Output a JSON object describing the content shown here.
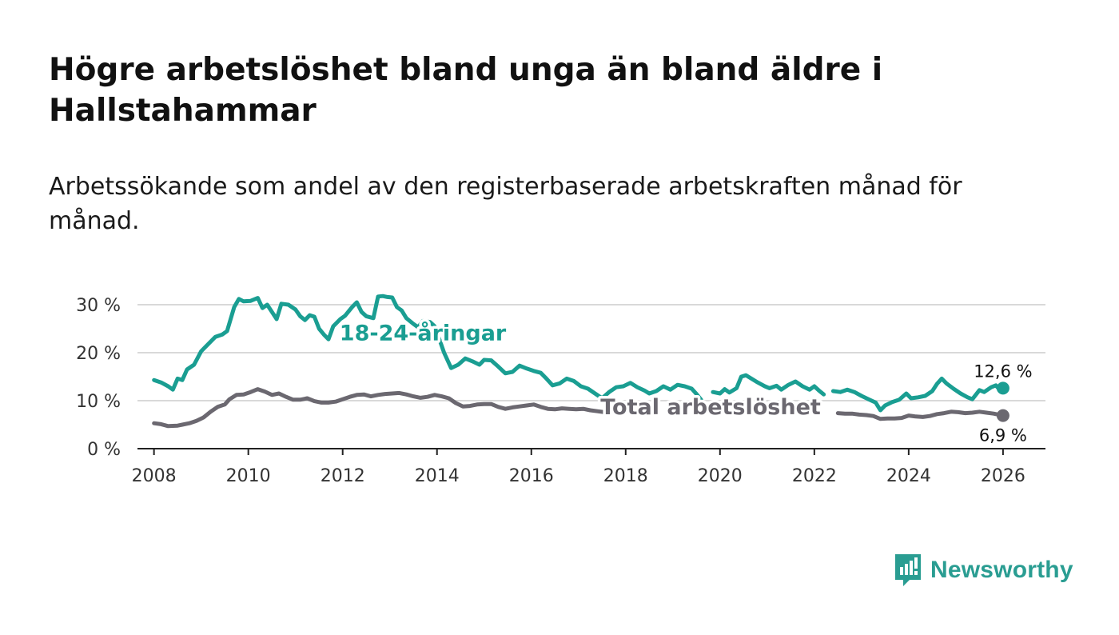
{
  "header": {
    "title": "Högre arbetslöshet bland unga än bland äldre i Hallstahammar",
    "subtitle": "Arbetssökande som andel av den registerbaserade arbetskraften månad för månad."
  },
  "brand": {
    "name": "Newsworthy",
    "color": "#2a9d92"
  },
  "colors": {
    "youth": "#1a9e92",
    "total": "#6b6870",
    "grid": "#d9d9d9",
    "axis": "#222222",
    "text": "#333333"
  },
  "chart_data": {
    "type": "line",
    "title": "Högre arbetslöshet bland unga än bland äldre i Hallstahammar",
    "xlabel": "",
    "ylabel": "",
    "xlim": [
      2007.65,
      2026.9
    ],
    "ylim": [
      0,
      30
    ],
    "y_ticks": [
      0,
      10,
      20,
      30
    ],
    "y_tick_labels": [
      "0 %",
      "10 %",
      "20 %",
      "30 %"
    ],
    "x_ticks": [
      2008,
      2010,
      2012,
      2014,
      2016,
      2018,
      2020,
      2022,
      2024,
      2026
    ],
    "x_tick_labels": [
      "2008",
      "2010",
      "2012",
      "2014",
      "2016",
      "2018",
      "2020",
      "2022",
      "2024",
      "2026"
    ],
    "grid": true,
    "series": [
      {
        "name": "18-24-åringar",
        "label": "18-24-åringar",
        "color": "#1a9e92",
        "last_value": 12.6,
        "end_label": "12,6 %",
        "points": [
          [
            2008.0,
            14.3
          ],
          [
            2008.15,
            13.8
          ],
          [
            2008.3,
            13.0
          ],
          [
            2008.4,
            12.3
          ],
          [
            2008.5,
            14.6
          ],
          [
            2008.6,
            14.3
          ],
          [
            2008.7,
            16.5
          ],
          [
            2008.85,
            17.5
          ],
          [
            2009.0,
            20.3
          ],
          [
            2009.15,
            21.8
          ],
          [
            2009.3,
            23.3
          ],
          [
            2009.45,
            23.8
          ],
          [
            2009.55,
            24.5
          ],
          [
            2009.7,
            29.5
          ],
          [
            2009.8,
            31.2
          ],
          [
            2009.9,
            30.7
          ],
          [
            2010.05,
            30.8
          ],
          [
            2010.2,
            31.4
          ],
          [
            2010.3,
            29.3
          ],
          [
            2010.4,
            30.0
          ],
          [
            2010.5,
            28.5
          ],
          [
            2010.6,
            27.0
          ],
          [
            2010.7,
            30.2
          ],
          [
            2010.85,
            30.0
          ],
          [
            2011.0,
            29.0
          ],
          [
            2011.1,
            27.6
          ],
          [
            2011.2,
            26.8
          ],
          [
            2011.3,
            27.8
          ],
          [
            2011.4,
            27.5
          ],
          [
            2011.5,
            25.0
          ],
          [
            2011.6,
            23.8
          ],
          [
            2011.7,
            22.8
          ],
          [
            2011.8,
            25.5
          ],
          [
            2011.95,
            27.0
          ],
          [
            2012.05,
            27.7
          ],
          [
            2012.2,
            29.5
          ],
          [
            2012.3,
            30.5
          ],
          [
            2012.4,
            28.5
          ],
          [
            2012.5,
            27.6
          ],
          [
            2012.65,
            27.2
          ],
          [
            2012.75,
            31.7
          ],
          [
            2012.85,
            31.8
          ],
          [
            2012.95,
            31.6
          ],
          [
            2013.05,
            31.5
          ],
          [
            2013.15,
            29.5
          ],
          [
            2013.25,
            28.8
          ],
          [
            2013.35,
            27.2
          ],
          [
            2013.5,
            26.0
          ],
          [
            2013.6,
            25.3
          ],
          [
            2013.7,
            26.6
          ],
          [
            2013.85,
            26.4
          ],
          [
            2013.95,
            25.5
          ],
          [
            2014.05,
            22.8
          ],
          [
            2014.15,
            20.0
          ],
          [
            2014.3,
            16.8
          ],
          [
            2014.45,
            17.5
          ],
          [
            2014.6,
            18.8
          ],
          [
            2014.75,
            18.2
          ],
          [
            2014.9,
            17.5
          ],
          [
            2015.0,
            18.5
          ],
          [
            2015.15,
            18.4
          ],
          [
            2015.3,
            17.1
          ],
          [
            2015.45,
            15.7
          ],
          [
            2015.6,
            16.0
          ],
          [
            2015.75,
            17.3
          ],
          [
            2015.9,
            16.7
          ],
          [
            2016.05,
            16.2
          ],
          [
            2016.2,
            15.8
          ],
          [
            2016.3,
            14.8
          ],
          [
            2016.45,
            13.2
          ],
          [
            2016.6,
            13.6
          ],
          [
            2016.75,
            14.6
          ],
          [
            2016.9,
            14.1
          ],
          [
            2017.05,
            13.0
          ],
          [
            2017.2,
            12.5
          ],
          [
            2017.35,
            11.5
          ],
          [
            2017.5,
            10.5
          ],
          [
            2017.65,
            11.8
          ],
          [
            2017.8,
            12.8
          ],
          [
            2017.95,
            13.0
          ],
          [
            2018.1,
            13.7
          ],
          [
            2018.25,
            12.8
          ],
          [
            2018.4,
            12.1
          ],
          [
            2018.5,
            11.5
          ],
          [
            2018.65,
            12.0
          ],
          [
            2018.8,
            13.0
          ],
          [
            2018.95,
            12.3
          ],
          [
            2019.1,
            13.3
          ],
          [
            2019.25,
            13.0
          ],
          [
            2019.4,
            12.5
          ],
          [
            2019.5,
            11.4
          ],
          [
            2019.6,
            10.2
          ],
          null,
          [
            2019.85,
            11.8
          ],
          [
            2020.0,
            11.5
          ],
          [
            2020.1,
            12.4
          ],
          [
            2020.2,
            11.7
          ],
          [
            2020.35,
            12.6
          ],
          [
            2020.45,
            15.0
          ],
          [
            2020.55,
            15.3
          ],
          [
            2020.7,
            14.4
          ],
          [
            2020.8,
            13.8
          ],
          [
            2020.95,
            13.0
          ],
          [
            2021.05,
            12.6
          ],
          [
            2021.2,
            13.1
          ],
          [
            2021.3,
            12.3
          ],
          [
            2021.45,
            13.3
          ],
          [
            2021.6,
            14.0
          ],
          [
            2021.75,
            13.0
          ],
          [
            2021.9,
            12.3
          ],
          [
            2022.0,
            13.0
          ],
          [
            2022.1,
            12.1
          ],
          [
            2022.2,
            11.3
          ],
          null,
          [
            2022.4,
            12.0
          ],
          [
            2022.55,
            11.8
          ],
          [
            2022.7,
            12.3
          ],
          [
            2022.85,
            11.8
          ],
          [
            2023.0,
            11.0
          ],
          [
            2023.15,
            10.3
          ],
          [
            2023.3,
            9.6
          ],
          [
            2023.4,
            8.0
          ],
          [
            2023.5,
            9.0
          ],
          [
            2023.65,
            9.7
          ],
          [
            2023.8,
            10.2
          ],
          [
            2023.95,
            11.5
          ],
          [
            2024.05,
            10.5
          ],
          [
            2024.2,
            10.7
          ],
          [
            2024.35,
            11.0
          ],
          [
            2024.5,
            12.0
          ],
          [
            2024.6,
            13.5
          ],
          [
            2024.7,
            14.6
          ],
          [
            2024.8,
            13.6
          ],
          [
            2024.95,
            12.5
          ],
          [
            2025.1,
            11.5
          ],
          [
            2025.25,
            10.7
          ],
          [
            2025.35,
            10.3
          ],
          [
            2025.5,
            12.2
          ],
          [
            2025.6,
            11.8
          ],
          [
            2025.75,
            12.8
          ],
          [
            2025.85,
            13.2
          ],
          [
            2025.95,
            12.0
          ],
          [
            2026.0,
            12.6
          ]
        ]
      },
      {
        "name": "Total arbetslöshet",
        "label": "Total arbetslöshet",
        "color": "#6b6870",
        "last_value": 6.9,
        "end_label": "6,9 %",
        "points": [
          [
            2008.0,
            5.3
          ],
          [
            2008.15,
            5.1
          ],
          [
            2008.3,
            4.7
          ],
          [
            2008.5,
            4.8
          ],
          [
            2008.6,
            5.0
          ],
          [
            2008.75,
            5.3
          ],
          [
            2008.9,
            5.8
          ],
          [
            2009.05,
            6.5
          ],
          [
            2009.2,
            7.7
          ],
          [
            2009.35,
            8.7
          ],
          [
            2009.5,
            9.2
          ],
          [
            2009.6,
            10.3
          ],
          [
            2009.75,
            11.2
          ],
          [
            2009.9,
            11.3
          ],
          [
            2010.05,
            11.8
          ],
          [
            2010.2,
            12.4
          ],
          [
            2010.35,
            11.9
          ],
          [
            2010.5,
            11.2
          ],
          [
            2010.65,
            11.5
          ],
          [
            2010.8,
            10.8
          ],
          [
            2010.95,
            10.2
          ],
          [
            2011.1,
            10.2
          ],
          [
            2011.25,
            10.5
          ],
          [
            2011.4,
            9.9
          ],
          [
            2011.55,
            9.6
          ],
          [
            2011.7,
            9.6
          ],
          [
            2011.85,
            9.8
          ],
          [
            2012.0,
            10.3
          ],
          [
            2012.15,
            10.8
          ],
          [
            2012.3,
            11.2
          ],
          [
            2012.45,
            11.3
          ],
          [
            2012.6,
            10.9
          ],
          [
            2012.75,
            11.2
          ],
          [
            2012.9,
            11.4
          ],
          [
            2013.05,
            11.5
          ],
          [
            2013.2,
            11.6
          ],
          [
            2013.35,
            11.3
          ],
          [
            2013.5,
            10.9
          ],
          [
            2013.65,
            10.6
          ],
          [
            2013.8,
            10.8
          ],
          [
            2013.95,
            11.2
          ],
          [
            2014.1,
            10.9
          ],
          [
            2014.25,
            10.5
          ],
          [
            2014.4,
            9.5
          ],
          [
            2014.55,
            8.8
          ],
          [
            2014.7,
            8.9
          ],
          [
            2014.85,
            9.2
          ],
          [
            2015.0,
            9.3
          ],
          [
            2015.15,
            9.3
          ],
          [
            2015.3,
            8.7
          ],
          [
            2015.45,
            8.3
          ],
          [
            2015.6,
            8.6
          ],
          [
            2015.75,
            8.8
          ],
          [
            2015.9,
            9.0
          ],
          [
            2016.05,
            9.2
          ],
          [
            2016.2,
            8.7
          ],
          [
            2016.35,
            8.3
          ],
          [
            2016.5,
            8.2
          ],
          [
            2016.65,
            8.4
          ],
          [
            2016.8,
            8.3
          ],
          [
            2016.95,
            8.2
          ],
          [
            2017.1,
            8.3
          ],
          [
            2017.25,
            8.0
          ],
          [
            2017.4,
            7.8
          ],
          [
            2017.55,
            7.6
          ],
          [
            2017.65,
            7.7
          ],
          null,
          [
            2022.5,
            7.4
          ],
          [
            2022.65,
            7.3
          ],
          [
            2022.8,
            7.3
          ],
          [
            2022.95,
            7.1
          ],
          [
            2023.1,
            7.0
          ],
          [
            2023.25,
            6.8
          ],
          [
            2023.4,
            6.2
          ],
          [
            2023.55,
            6.3
          ],
          [
            2023.7,
            6.3
          ],
          [
            2023.85,
            6.4
          ],
          [
            2024.0,
            6.9
          ],
          [
            2024.15,
            6.7
          ],
          [
            2024.3,
            6.6
          ],
          [
            2024.45,
            6.8
          ],
          [
            2024.6,
            7.2
          ],
          [
            2024.75,
            7.4
          ],
          [
            2024.9,
            7.7
          ],
          [
            2025.05,
            7.6
          ],
          [
            2025.2,
            7.4
          ],
          [
            2025.35,
            7.5
          ],
          [
            2025.5,
            7.7
          ],
          [
            2025.65,
            7.5
          ],
          [
            2025.8,
            7.3
          ],
          [
            2025.95,
            7.0
          ],
          [
            2026.0,
            6.9
          ]
        ]
      }
    ]
  }
}
